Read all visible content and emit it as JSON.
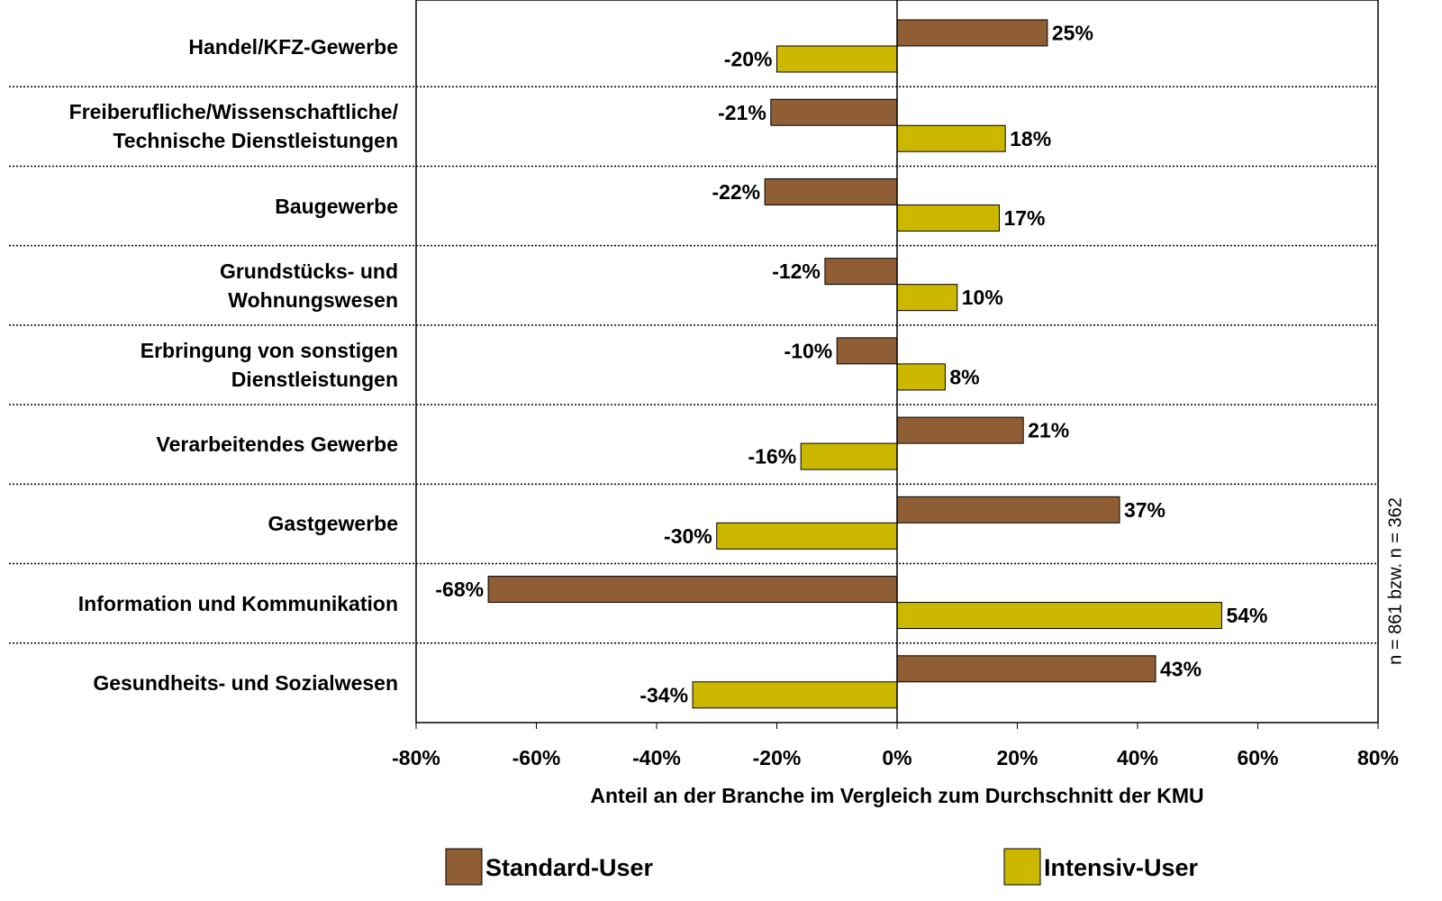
{
  "chart_data": {
    "type": "barh",
    "categories": [
      "Handel/KFZ-Gewerbe",
      "Freiberufliche/Wissenschaftliche/\nTechnische Dienstleistungen",
      "Baugewerbe",
      "Grundstücks- und\nWohnungswesen",
      "Erbringung von sonstigen\nDienstleistungen",
      "Verarbeitendes Gewerbe",
      "Gastgewerbe",
      "Information und Kommunikation",
      "Gesundheits- und Sozialwesen"
    ],
    "series": [
      {
        "name": "Standard-User",
        "color": "#8f5e34",
        "values": [
          25,
          -21,
          -22,
          -12,
          -10,
          21,
          37,
          -68,
          43
        ],
        "value_labels": [
          "25%",
          "-21%",
          "-22%",
          "-12%",
          "-10%",
          "21%",
          "37%",
          "-68%",
          "43%"
        ]
      },
      {
        "name": "Intensiv-User",
        "color": "#ccb800",
        "values": [
          -20,
          18,
          17,
          10,
          8,
          -16,
          -30,
          54,
          -34
        ],
        "value_labels": [
          "-20%",
          "18%",
          "17%",
          "10%",
          "8%",
          "-16%",
          "-30%",
          "54%",
          "-34%"
        ]
      }
    ],
    "xlabel": "Anteil an der Branche im Vergleich zum Durchschnitt der KMU",
    "note": "n = 861 bzw. n = 362",
    "xlim": [
      -80,
      80
    ],
    "xticks": [
      {
        "value": -80,
        "label": "-80%"
      },
      {
        "value": -60,
        "label": "-60%"
      },
      {
        "value": -40,
        "label": "-40%"
      },
      {
        "value": -20,
        "label": "-20%"
      },
      {
        "value": 0,
        "label": "0%"
      },
      {
        "value": 20,
        "label": "20%"
      },
      {
        "value": 40,
        "label": "40%"
      },
      {
        "value": 60,
        "label": "60%"
      },
      {
        "value": 80,
        "label": "80%"
      }
    ],
    "legend": "bottom"
  }
}
